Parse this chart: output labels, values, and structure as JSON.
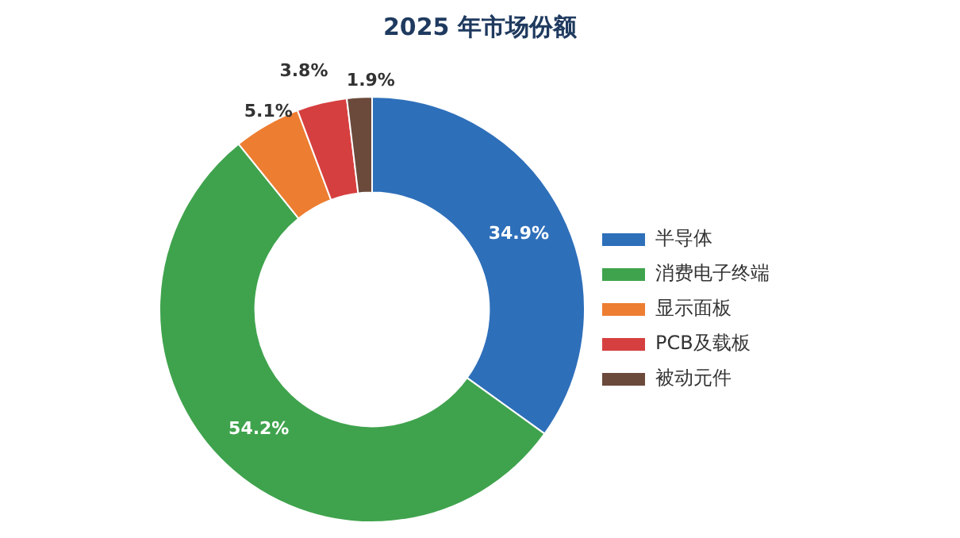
{
  "chart_data": {
    "type": "donut",
    "title": "2025 年市场份额",
    "categories": [
      "半导体",
      "消费电子终端",
      "显示面板",
      "PCB及载板",
      "被动元件"
    ],
    "values": [
      34.9,
      54.2,
      5.1,
      3.8,
      1.9
    ],
    "value_labels": [
      "34.9%",
      "54.2%",
      "5.1%",
      "3.8%",
      "1.9%"
    ],
    "colors": [
      "#2e6fba",
      "#3fa34d",
      "#ed7d31",
      "#d63f3f",
      "#6b4a3c"
    ],
    "legend": "right"
  }
}
